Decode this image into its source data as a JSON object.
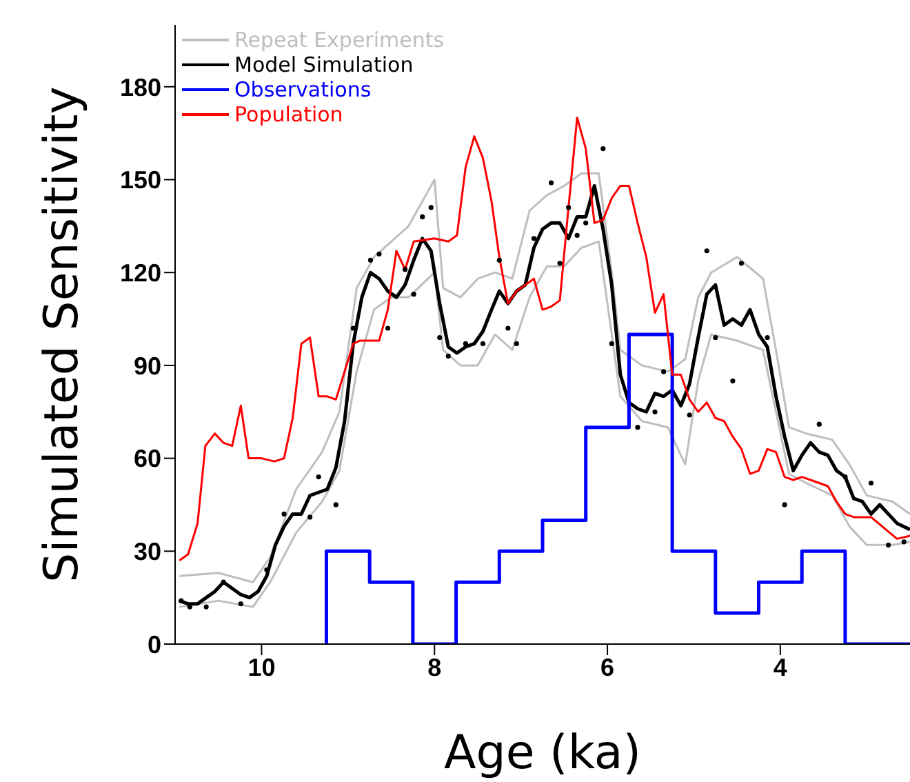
{
  "chart_data": {
    "type": "line",
    "xlabel": "Age (ka)",
    "ylabel": "Simulated Sensitivity",
    "xlim": [
      11,
      2.5
    ],
    "xticks": [
      10,
      8,
      6,
      4
    ],
    "ylim": [
      0,
      200
    ],
    "yticks": [
      0,
      30,
      60,
      90,
      120,
      150,
      180
    ],
    "grid": false,
    "legend": "top left",
    "marker": "none",
    "line_style": "solid",
    "series": [
      {
        "name": "Repeat Experiments",
        "color": "#bebebe",
        "x": [
          10.95,
          10.5,
          10.1,
          9.9,
          9.6,
          9.3,
          9.1,
          8.9,
          8.7,
          8.5,
          8.3,
          8.0,
          7.9,
          7.7,
          7.5,
          7.3,
          7.1,
          6.9,
          6.7,
          6.5,
          6.3,
          6.1,
          5.95,
          5.85,
          5.6,
          5.3,
          5.1,
          4.95,
          4.8,
          4.5,
          4.2,
          4.05,
          3.9,
          3.7,
          3.4,
          3.2,
          3.0,
          2.7,
          2.5
        ],
        "values": [
          22,
          23,
          20,
          28,
          50,
          62,
          75,
          115,
          125,
          130,
          135,
          150,
          115,
          112,
          118,
          120,
          118,
          140,
          145,
          148,
          152,
          152,
          120,
          95,
          90,
          88,
          92,
          112,
          120,
          125,
          118,
          95,
          70,
          68,
          66,
          58,
          48,
          46,
          42
        ]
      },
      {
        "color": "#bebebe",
        "x": [
          10.95,
          10.5,
          10.1,
          9.9,
          9.6,
          9.3,
          9.1,
          8.9,
          8.7,
          8.5,
          8.3,
          8.0,
          7.9,
          7.7,
          7.5,
          7.3,
          7.1,
          6.9,
          6.7,
          6.5,
          6.3,
          6.1,
          5.95,
          5.85,
          5.6,
          5.3,
          5.1,
          4.95,
          4.8,
          4.5,
          4.2,
          4.05,
          3.9,
          3.7,
          3.4,
          3.2,
          3.0,
          2.7,
          2.5
        ],
        "values": [
          12,
          14,
          12,
          20,
          36,
          46,
          56,
          88,
          108,
          112,
          112,
          120,
          95,
          90,
          90,
          100,
          95,
          112,
          122,
          122,
          128,
          130,
          100,
          80,
          72,
          70,
          58,
          85,
          100,
          98,
          95,
          75,
          55,
          52,
          48,
          38,
          32,
          32,
          33
        ]
      },
      {
        "name": "Model Simulation",
        "color": "#000000",
        "x": [
          10.95,
          10.85,
          10.74,
          10.64,
          10.54,
          10.44,
          10.34,
          10.24,
          10.14,
          10.04,
          9.94,
          9.84,
          9.74,
          9.64,
          9.54,
          9.44,
          9.34,
          9.24,
          9.14,
          9.04,
          8.94,
          8.84,
          8.74,
          8.64,
          8.54,
          8.44,
          8.34,
          8.24,
          8.14,
          8.04,
          7.94,
          7.84,
          7.74,
          7.64,
          7.54,
          7.44,
          7.34,
          7.25,
          7.15,
          7.05,
          6.95,
          6.85,
          6.75,
          6.65,
          6.55,
          6.45,
          6.35,
          6.25,
          6.15,
          6.05,
          5.95,
          5.85,
          5.75,
          5.65,
          5.55,
          5.45,
          5.35,
          5.25,
          5.15,
          5.05,
          4.95,
          4.85,
          4.75,
          4.65,
          4.55,
          4.45,
          4.35,
          4.25,
          4.15,
          4.05,
          3.95,
          3.85,
          3.75,
          3.65,
          3.55,
          3.45,
          3.35,
          3.25,
          3.15,
          3.05,
          2.95,
          2.85,
          2.75,
          2.65,
          2.5
        ],
        "values": [
          14,
          13,
          13,
          15,
          17,
          20,
          18,
          16,
          15,
          17,
          22,
          32,
          38,
          42,
          42,
          48,
          49,
          50,
          57,
          72,
          97,
          112,
          120,
          118,
          114,
          112,
          116,
          124,
          131,
          127,
          110,
          96,
          94,
          96,
          97,
          101,
          108,
          114,
          110,
          114,
          116,
          128,
          134,
          136,
          136,
          131,
          138,
          138,
          148,
          134,
          116,
          87,
          78,
          76,
          75,
          81,
          80,
          82,
          77,
          84,
          99,
          113,
          116,
          103,
          105,
          103,
          108,
          100,
          96,
          80,
          67,
          56,
          61,
          65,
          62,
          61,
          56,
          54,
          47,
          46,
          42,
          45,
          42,
          39,
          37
        ]
      },
      {
        "name": "Observations",
        "color": "#0000ff",
        "type": "step",
        "x": [
          9.25,
          8.75,
          8.25,
          7.75,
          7.25,
          6.75,
          6.25,
          5.75,
          5.25,
          4.75,
          4.25,
          3.75,
          3.25,
          2.75,
          2.5
        ],
        "values": [
          0,
          30,
          20,
          0,
          20,
          30,
          40,
          70,
          100,
          30,
          10,
          20,
          30,
          0,
          0
        ]
      },
      {
        "name": "Population",
        "color": "#ff0000",
        "x": [
          10.95,
          10.85,
          10.74,
          10.65,
          10.54,
          10.44,
          10.34,
          10.24,
          10.15,
          10.0,
          9.85,
          9.74,
          9.64,
          9.54,
          9.44,
          9.34,
          9.24,
          9.14,
          8.94,
          8.86,
          8.64,
          8.54,
          8.44,
          8.34,
          8.24,
          8.0,
          7.84,
          7.74,
          7.64,
          7.54,
          7.44,
          7.34,
          7.25,
          7.15,
          7.05,
          6.85,
          6.75,
          6.65,
          6.55,
          6.45,
          6.35,
          6.25,
          6.15,
          6.05,
          5.95,
          5.85,
          5.75,
          5.65,
          5.55,
          5.45,
          5.35,
          5.25,
          5.15,
          5.05,
          4.95,
          4.85,
          4.75,
          4.65,
          4.55,
          4.45,
          4.35,
          4.25,
          4.15,
          4.05,
          3.95,
          3.85,
          3.75,
          3.65,
          3.45,
          3.35,
          3.25,
          3.15,
          2.95,
          2.65,
          2.5
        ],
        "values": [
          27,
          29,
          39,
          64,
          68,
          65,
          64,
          77,
          60,
          60,
          59,
          60,
          73,
          97,
          99,
          80,
          80,
          79,
          97,
          98,
          98,
          108,
          127,
          121,
          130,
          131,
          130,
          132,
          154,
          164,
          157,
          143,
          125,
          110,
          114,
          118,
          108,
          109,
          111,
          141,
          170,
          160,
          136,
          137,
          144,
          148,
          148,
          136,
          125,
          107,
          113,
          87,
          87,
          79,
          75,
          78,
          73,
          72,
          67,
          63,
          55,
          56,
          63,
          62,
          54,
          53,
          54,
          53,
          51,
          46,
          42,
          41,
          41,
          34,
          35
        ]
      },
      {
        "color": "#000000",
        "type": "scatter",
        "marker": "circle",
        "x": [
          10.93,
          10.83,
          10.64,
          10.44,
          10.24,
          9.94,
          9.74,
          9.44,
          9.34,
          9.14,
          8.94,
          8.74,
          8.64,
          8.54,
          8.34,
          8.24,
          8.14,
          8.04,
          7.94,
          7.84,
          7.64,
          7.44,
          7.25,
          7.15,
          7.05,
          6.85,
          6.65,
          6.55,
          6.45,
          6.35,
          6.25,
          6.05,
          5.95,
          5.65,
          5.45,
          5.35,
          5.05,
          4.85,
          4.75,
          4.55,
          4.45,
          4.15,
          3.95,
          3.55,
          3.25,
          2.95,
          2.75,
          2.57
        ],
        "values": [
          14,
          12,
          12,
          20,
          13,
          24,
          42,
          41,
          54,
          45,
          102,
          124,
          126,
          102,
          121,
          113,
          138,
          141,
          99,
          93,
          97,
          97,
          124,
          102,
          97,
          131,
          149,
          123,
          141,
          132,
          136,
          160,
          97,
          70,
          75,
          88,
          74,
          127,
          99,
          85,
          123,
          99,
          45,
          71,
          54,
          52,
          32,
          33
        ]
      }
    ]
  }
}
